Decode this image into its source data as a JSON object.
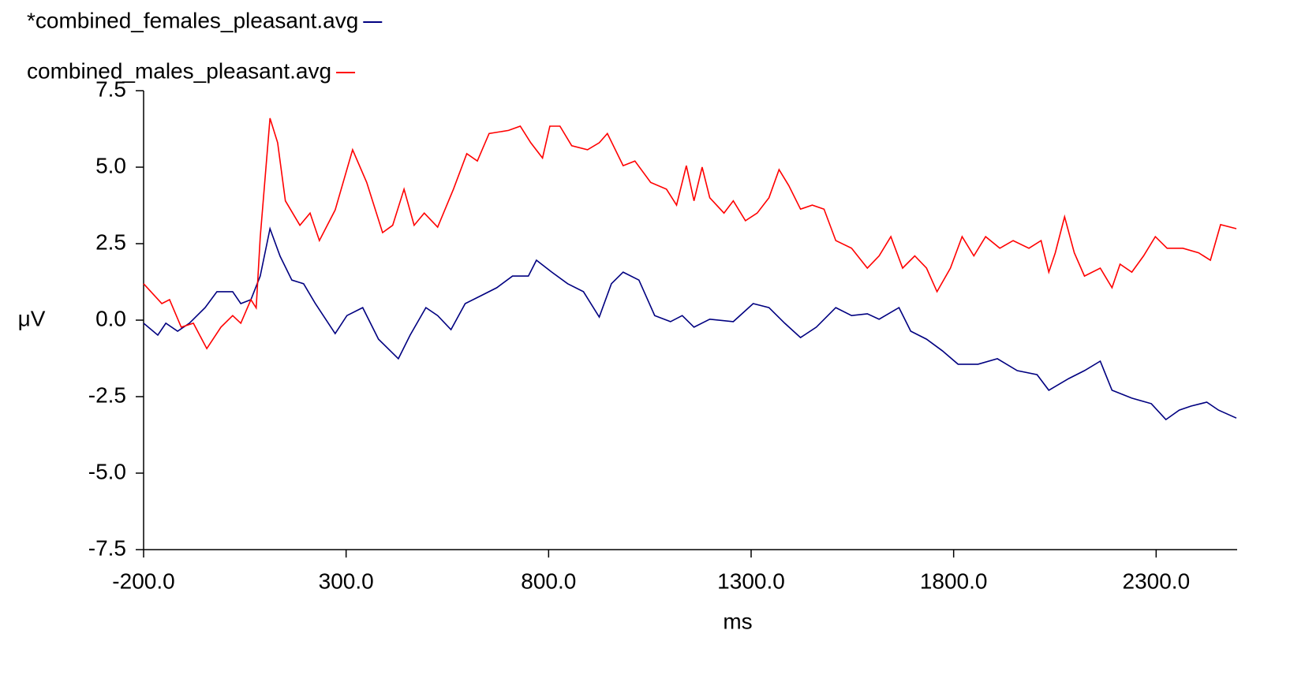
{
  "chart_data": {
    "type": "line",
    "xlabel": "ms",
    "ylabel": "μV",
    "xlim": [
      -200,
      2500
    ],
    "ylim": [
      -7.5,
      7.5
    ],
    "xticks": [
      {
        "value": -200,
        "label": "-200.0"
      },
      {
        "value": 300,
        "label": "300.0"
      },
      {
        "value": 800,
        "label": "800.0"
      },
      {
        "value": 1300,
        "label": "1300.0"
      },
      {
        "value": 1800,
        "label": "1800.0"
      },
      {
        "value": 2300,
        "label": "2300.0"
      }
    ],
    "yticks": [
      7.5,
      {
        "value": 5,
        "label": "5.0"
      },
      2.5,
      {
        "value": 0,
        "label": "0.0"
      },
      -2.5,
      {
        "value": -5,
        "label": "-5.0"
      },
      -7.5
    ],
    "grid": false,
    "series": [
      {
        "name": "*combined_females_pleasant.avg",
        "color": "#000080",
        "x": [
          -200,
          -165,
          -145,
          -116,
          -87,
          -48,
          -19,
          20,
          40,
          65,
          88,
          112,
          137,
          166,
          195,
          224,
          273,
          302,
          341,
          380,
          429,
          458,
          497,
          526,
          559,
          594,
          633,
          672,
          711,
          750,
          770,
          808,
          847,
          886,
          925,
          955,
          984,
          1023,
          1062,
          1101,
          1130,
          1159,
          1198,
          1256,
          1305,
          1344,
          1383,
          1422,
          1461,
          1509,
          1548,
          1587,
          1616,
          1665,
          1694,
          1733,
          1772,
          1811,
          1860,
          1908,
          1957,
          2006,
          2035,
          2084,
          2123,
          2162,
          2191,
          2240,
          2288,
          2324,
          2357,
          2386,
          2425,
          2454,
          2498
        ],
        "values": [
          -0.1,
          -0.49,
          -0.1,
          -0.36,
          -0.1,
          0.41,
          0.93,
          0.93,
          0.54,
          0.67,
          1.44,
          2.99,
          2.09,
          1.31,
          1.19,
          0.54,
          -0.44,
          0.15,
          0.41,
          -0.62,
          -1.26,
          -0.49,
          0.41,
          0.15,
          -0.31,
          0.54,
          0.8,
          1.06,
          1.44,
          1.44,
          1.96,
          1.57,
          1.19,
          0.93,
          0.1,
          1.19,
          1.57,
          1.31,
          0.15,
          -0.05,
          0.15,
          -0.23,
          0.03,
          -0.05,
          0.54,
          0.41,
          -0.1,
          -0.57,
          -0.23,
          0.41,
          0.15,
          0.21,
          0.03,
          0.41,
          -0.36,
          -0.62,
          -1.0,
          -1.44,
          -1.44,
          -1.26,
          -1.65,
          -1.78,
          -2.29,
          -1.91,
          -1.65,
          -1.34,
          -2.29,
          -2.55,
          -2.73,
          -3.25,
          -2.94,
          -2.81,
          -2.68,
          -2.94,
          -3.2
        ]
      },
      {
        "name": "combined_males_pleasant.avg",
        "color": "#ff0000",
        "x": [
          -200,
          -155,
          -136,
          -107,
          -77,
          -44,
          -9,
          20,
          40,
          65,
          78,
          88,
          112,
          131,
          150,
          186,
          211,
          234,
          273,
          316,
          351,
          390,
          415,
          443,
          468,
          493,
          526,
          565,
          598,
          624,
          653,
          701,
          730,
          756,
          785,
          803,
          828,
          857,
          896,
          925,
          945,
          984,
          1013,
          1052,
          1091,
          1116,
          1140,
          1159,
          1179,
          1198,
          1233,
          1256,
          1286,
          1315,
          1344,
          1369,
          1393,
          1422,
          1451,
          1480,
          1509,
          1548,
          1587,
          1616,
          1645,
          1674,
          1704,
          1733,
          1759,
          1792,
          1821,
          1850,
          1879,
          1914,
          1947,
          1986,
          2016,
          2035,
          2051,
          2074,
          2098,
          2123,
          2162,
          2191,
          2211,
          2240,
          2269,
          2298,
          2327,
          2366,
          2405,
          2434,
          2459,
          2498
        ],
        "values": [
          1.19,
          0.54,
          0.67,
          -0.23,
          -0.1,
          -0.93,
          -0.23,
          0.15,
          -0.1,
          0.67,
          0.4,
          2.7,
          6.6,
          5.8,
          3.9,
          3.1,
          3.5,
          2.6,
          3.6,
          5.57,
          4.5,
          2.86,
          3.1,
          4.28,
          3.1,
          3.5,
          3.04,
          4.28,
          5.44,
          5.2,
          6.1,
          6.2,
          6.34,
          5.8,
          5.3,
          6.34,
          6.34,
          5.7,
          5.57,
          5.8,
          6.1,
          5.05,
          5.2,
          4.5,
          4.28,
          3.76,
          5.05,
          3.9,
          5.0,
          4.0,
          3.5,
          3.9,
          3.25,
          3.5,
          4.0,
          4.92,
          4.4,
          3.63,
          3.76,
          3.63,
          2.6,
          2.35,
          1.7,
          2.1,
          2.73,
          1.7,
          2.1,
          1.7,
          0.93,
          1.7,
          2.73,
          2.1,
          2.73,
          2.35,
          2.6,
          2.35,
          2.6,
          1.57,
          2.2,
          3.38,
          2.2,
          1.44,
          1.7,
          1.06,
          1.83,
          1.57,
          2.1,
          2.73,
          2.35,
          2.35,
          2.2,
          1.96,
          3.12,
          2.99
        ]
      }
    ]
  }
}
